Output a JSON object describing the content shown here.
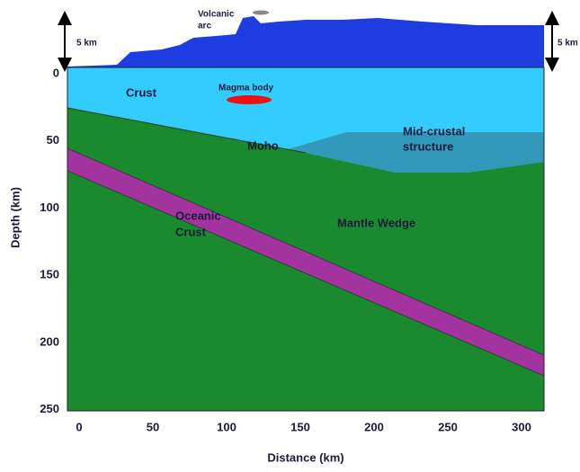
{
  "title_labels": {
    "volcanic_arc": [
      "Volcanic",
      "arc"
    ],
    "scale_left": "5 km",
    "scale_right": "5 km"
  },
  "labels": {
    "crust": "Crust",
    "magma_body": "Magma body",
    "moho": "Moho",
    "mid_crustal": [
      "Mid-crustal",
      "structure"
    ],
    "oceanic_crust": [
      "Oceanic",
      "Crust"
    ],
    "mantle_wedge": "Mantle Wedge"
  },
  "axes": {
    "x_label": "Distance (km)",
    "y_label": "Depth (km)",
    "x_ticks": [
      0,
      50,
      100,
      150,
      200,
      250,
      300
    ],
    "y_ticks": [
      0,
      50,
      100,
      150,
      200,
      250
    ]
  }
}
